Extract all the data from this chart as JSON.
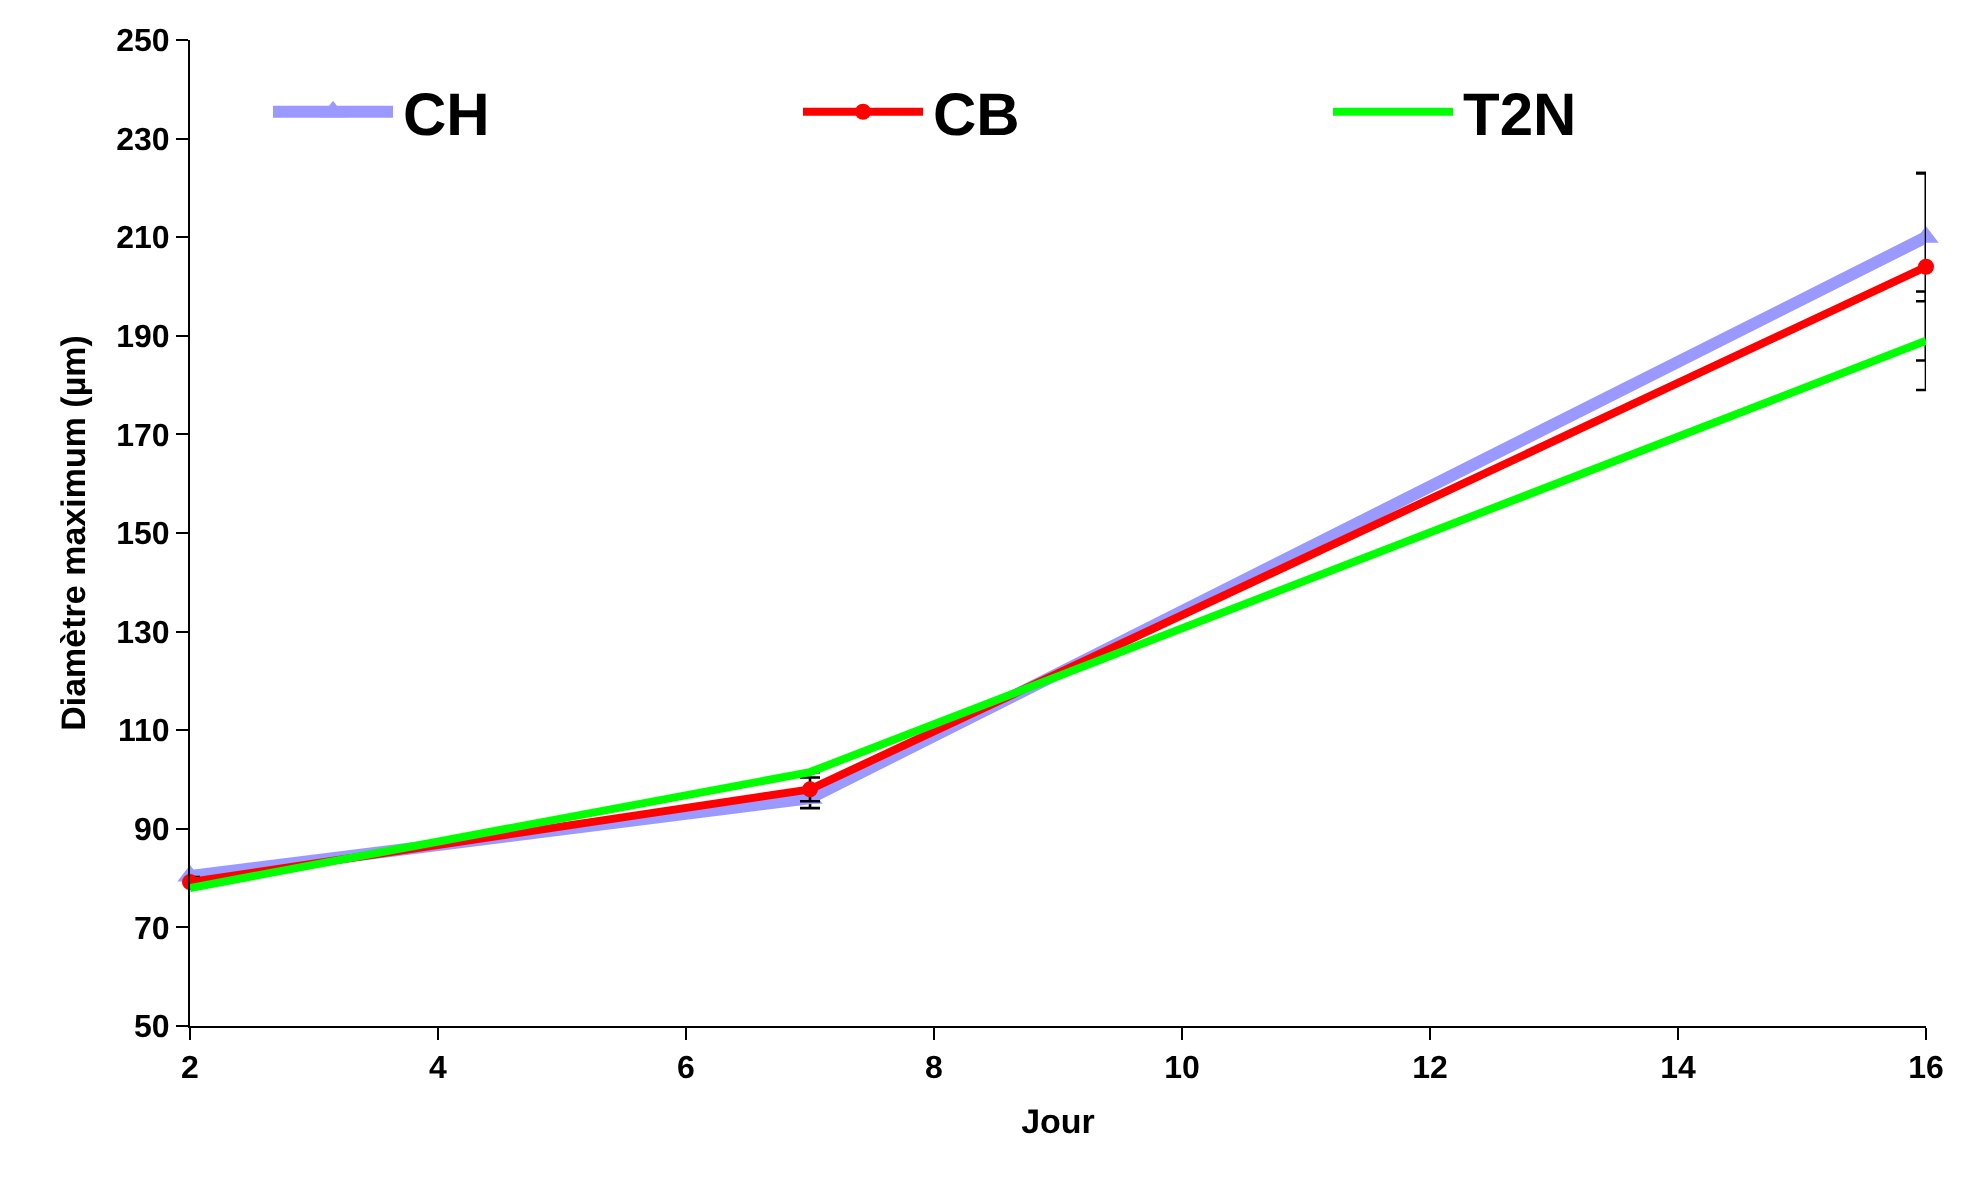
{
  "chart_data": {
    "type": "line",
    "xlabel": "Jour",
    "ylabel": "Diamètre maximum (µm)",
    "x": [
      2,
      7,
      16
    ],
    "series": [
      {
        "name": "CH",
        "color": "#9999ff",
        "marker": "triangle",
        "values": [
          80.4,
          96.2,
          210
        ],
        "errors": [
          1,
          2,
          13
        ]
      },
      {
        "name": "CB",
        "color": "#ff0000",
        "marker": "circle",
        "values": [
          79.2,
          98,
          204
        ],
        "errors": [
          1,
          2.4,
          19
        ]
      },
      {
        "name": "T2N",
        "color": "#00ff00",
        "marker": "none",
        "values": [
          78,
          101.5,
          189
        ],
        "errors": [
          null,
          null,
          10
        ]
      }
    ],
    "xlim": [
      2,
      16
    ],
    "xticks": [
      2,
      4,
      6,
      8,
      10,
      12,
      14,
      16
    ],
    "ylim": [
      50,
      250
    ],
    "yticks": [
      50,
      70,
      90,
      110,
      130,
      150,
      170,
      190,
      210,
      230,
      250
    ],
    "grid": false,
    "legend": "top",
    "line_style": "solid"
  }
}
